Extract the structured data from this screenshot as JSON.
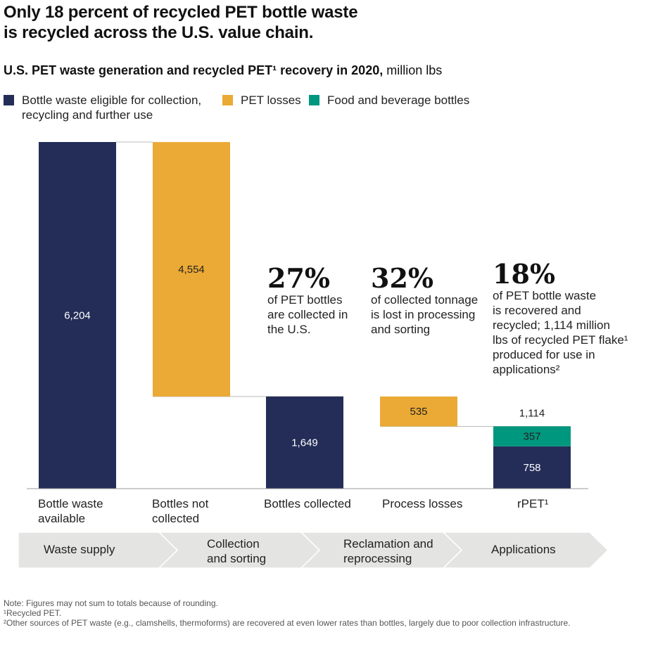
{
  "title": "Only 18 percent of recycled PET bottle waste\nis recycled across the U.S. value chain.",
  "subtitle_bold": "U.S. PET waste generation and recycled PET¹ recovery in 2020,",
  "subtitle_unit": " million lbs",
  "legend": [
    {
      "label": "Bottle waste eligible for collection,\nrecycling and further use",
      "color": "#232d57"
    },
    {
      "label": "PET losses",
      "color": "#ebaa35"
    },
    {
      "label": "Food and beverage bottles",
      "color": "#00977f"
    }
  ],
  "callouts": [
    {
      "value": "27%",
      "text": "of PET bottles\nare collected in\nthe U.S."
    },
    {
      "value": "32%",
      "text": "of collected tonnage\nis lost in processing\nand sorting"
    },
    {
      "value": "18%",
      "text": "of PET bottle waste\nis recovered and\nrecycled; 1,114 million\nlbs of recycled PET flake¹\nproduced for use in\napplications²"
    }
  ],
  "stages": [
    "Waste supply",
    "Collection\nand sorting",
    "Reclamation and\nreprocessing",
    "Applications"
  ],
  "stage_color": "#e4e5e2",
  "chart_data": {
    "type": "waterfall",
    "categories": [
      "Bottle waste\navailable",
      "Bottles not\ncollected",
      "Bottles collected",
      "Process losses",
      "rPET¹"
    ],
    "ylim": [
      0,
      6204
    ],
    "grid": false,
    "legend_position": "top-left",
    "segments": [
      {
        "category": 0,
        "series": "Bottle waste eligible for collection, recycling and further use",
        "base": 0,
        "value": 6204,
        "label": "6,204",
        "color": "#232d57",
        "label_color": "#ffffff"
      },
      {
        "category": 1,
        "series": "PET losses",
        "base": 1649,
        "value": 4554,
        "label": "4,554",
        "color": "#ebaa35",
        "label_color": "#222222"
      },
      {
        "category": 2,
        "series": "Bottle waste eligible for collection, recycling and further use",
        "base": 0,
        "value": 1649,
        "label": "1,649",
        "color": "#232d57",
        "label_color": "#ffffff"
      },
      {
        "category": 3,
        "series": "PET losses",
        "base": 1114,
        "value": 535,
        "label": "535",
        "color": "#ebaa35",
        "label_color": "#222222"
      },
      {
        "category": 4,
        "series": "Bottle waste eligible for collection, recycling and further use",
        "base": 0,
        "value": 758,
        "label": "758",
        "color": "#232d57",
        "label_color": "#ffffff"
      },
      {
        "category": 4,
        "series": "Food and beverage bottles",
        "base": 758,
        "value": 357,
        "label": "357",
        "color": "#00977f",
        "label_color": "#222222"
      }
    ],
    "totals": [
      {
        "category": 4,
        "value": 1114,
        "label": "1,114"
      }
    ]
  },
  "notes": [
    "Note: Figures may not sum to totals because of rounding.",
    "¹Recycled PET.",
    "²Other sources of PET waste (e.g., clamshells, thermoforms) are recovered at even lower rates than bottles, largely due to poor collection infrastructure."
  ]
}
